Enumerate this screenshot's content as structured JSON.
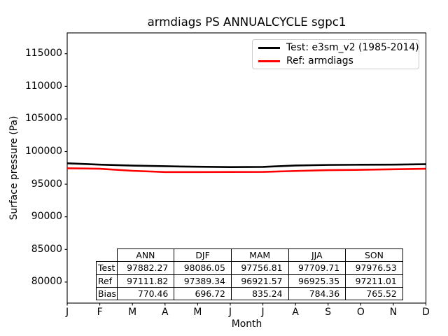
{
  "figure": {
    "title": "armdiags PS ANNUALCYCLE sgpc1"
  },
  "axes": {
    "xlabel": "Month",
    "ylabel": "Surface pressure (Pa)"
  },
  "legend": {
    "entries": [
      {
        "label": "Test: e3sm_v2 (1985-2014)",
        "color": "#000000"
      },
      {
        "label": "Ref: armdiags",
        "color": "#ff0000"
      }
    ]
  },
  "chart_data": {
    "type": "line",
    "title": "armdiags PS ANNUALCYCLE sgpc1",
    "xlabel": "Month",
    "ylabel": "Surface pressure (Pa)",
    "categories": [
      "J",
      "F",
      "M",
      "A",
      "M",
      "J",
      "J",
      "A",
      "S",
      "O",
      "N",
      "D"
    ],
    "yticks": [
      80000,
      85000,
      90000,
      95000,
      100000,
      105000,
      110000,
      115000
    ],
    "ylim": [
      76770,
      118190
    ],
    "grid": false,
    "legend_position": "upper right",
    "series": [
      {
        "name": "Test: e3sm_v2 (1985-2014)",
        "color": "#000000",
        "linewidth": 2.6,
        "values": [
          98200,
          98000,
          97850,
          97750,
          97670,
          97620,
          97650,
          97860,
          97950,
          97980,
          98000,
          98060
        ]
      },
      {
        "name": "Ref: armdiags",
        "color": "#ff0000",
        "linewidth": 2.6,
        "values": [
          97430,
          97370,
          97050,
          96860,
          96855,
          96870,
          96880,
          97025,
          97150,
          97200,
          97283,
          97368
        ]
      }
    ],
    "table": {
      "column_headers": [
        "ANN",
        "DJF",
        "MAM",
        "JJA",
        "SON"
      ],
      "row_labels": [
        "Test",
        "Ref",
        "Bias"
      ],
      "rows": [
        [
          "97882.27",
          "98086.05",
          "97756.81",
          "97709.71",
          "97976.53"
        ],
        [
          "97111.82",
          "97389.34",
          "96921.57",
          "96925.35",
          "97211.01"
        ],
        [
          "770.46",
          "696.72",
          "835.24",
          "784.36",
          "765.52"
        ]
      ]
    }
  }
}
